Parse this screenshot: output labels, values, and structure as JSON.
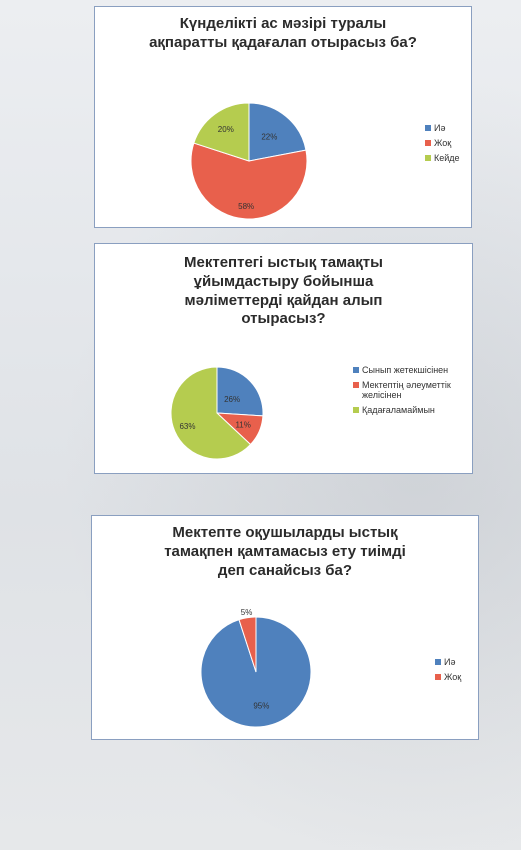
{
  "chart_data": [
    {
      "type": "pie",
      "title_lines": [
        "Күнделікті ас мәзірі туралы",
        "ақпаратты қадағалап отырасыз ба?"
      ],
      "categories": [
        "Иә",
        "Жоқ",
        "Кейде"
      ],
      "values": [
        22,
        58,
        20
      ],
      "value_labels": [
        "22%",
        "58%",
        "20%"
      ],
      "colors": [
        "#4f81bd",
        "#e8604c",
        "#b5cc4f"
      ],
      "legend_position": "right"
    },
    {
      "type": "pie",
      "title_lines": [
        "Мектептегі ыстық тамақты",
        "ұйымдастыру бойынша",
        "мәліметтерді қайдан алып",
        "отырасыз?"
      ],
      "categories": [
        "Сынып жетекшісінен",
        "Мектептің әлеуметтік желісінен",
        "Қадағаламаймын"
      ],
      "legend_lines": [
        [
          "Сынып жетекшісінен"
        ],
        [
          "Мектептің әлеуметтік",
          "желісінен"
        ],
        [
          "Қадағаламаймын"
        ]
      ],
      "values": [
        26,
        11,
        63
      ],
      "value_labels": [
        "26%",
        "11%",
        "63%"
      ],
      "colors": [
        "#4f81bd",
        "#e8604c",
        "#b5cc4f"
      ],
      "legend_position": "right"
    },
    {
      "type": "pie",
      "title_lines": [
        "Мектепте оқушыларды ыстық",
        "тамақпен қамтамасыз ету тиімді",
        "деп санайсыз ба?"
      ],
      "categories": [
        "Иә",
        "Жоқ"
      ],
      "values": [
        95,
        5
      ],
      "value_labels": [
        "95%",
        "5%"
      ],
      "colors": [
        "#4f81bd",
        "#e8604c"
      ],
      "legend_position": "right"
    }
  ]
}
